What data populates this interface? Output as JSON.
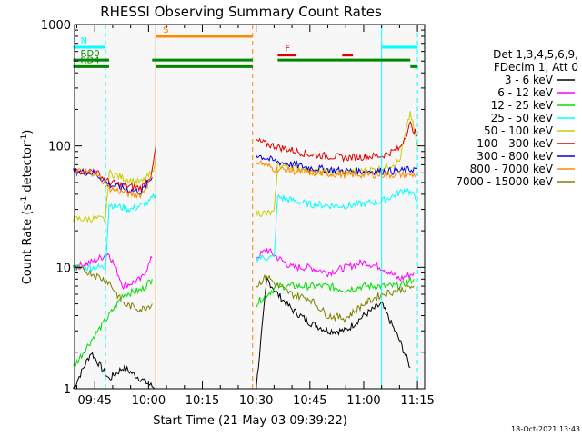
{
  "chart_data": {
    "type": "line",
    "title": "RHESSI Observing Summary Count Rates",
    "xlabel": "Start Time (21-May-03 09:39:22)",
    "ylabel_prefix": "Count Rate (s",
    "ylabel_sup1": "-1",
    "ylabel_mid": " detector",
    "ylabel_sup2": "-1",
    "ylabel_suffix": ")",
    "y_scale": "log",
    "xlim": [
      "09:39:22",
      "11:17:00"
    ],
    "ylim": [
      1,
      1000
    ],
    "x_ticks": [
      "09:45",
      "10:00",
      "10:15",
      "10:30",
      "10:45",
      "11:00",
      "11:15"
    ],
    "y_ticks": [
      "1",
      "10",
      "100",
      "1000"
    ],
    "footer_timestamp": "18-Oct-2021 13:43",
    "legend_header": [
      "Det 1,3,4,5,6,9,",
      "FDecim 1, Att 0"
    ],
    "series": [
      {
        "name": "3 - 6 keV",
        "color": "#000000",
        "x": [
          "09:39",
          "09:44",
          "09:49",
          "09:53",
          "10:02",
          "10:30",
          "10:33",
          "10:36",
          "10:40",
          "10:45",
          "10:50",
          "10:55",
          "11:00",
          "11:05",
          "11:10",
          "11:13"
        ],
        "values": [
          1.0,
          2.0,
          1.2,
          1.5,
          1.0,
          1.0,
          8.0,
          6.0,
          4.5,
          3.5,
          3.0,
          3.0,
          4.0,
          5.0,
          2.5,
          1.5
        ]
      },
      {
        "name": "6 - 12 keV",
        "color": "#ff00ff",
        "x": [
          "09:39",
          "09:44",
          "09:49",
          "09:53",
          "09:58",
          "10:01",
          "10:30",
          "10:33",
          "10:36",
          "10:40",
          "10:45",
          "10:50",
          "10:55",
          "11:00",
          "11:05",
          "11:10",
          "11:14"
        ],
        "values": [
          10,
          11,
          13,
          7,
          8,
          12,
          12,
          14,
          12,
          10,
          10,
          9,
          10,
          11,
          10,
          8,
          9
        ]
      },
      {
        "name": "12 - 25 keV",
        "color": "#00dd00",
        "x": [
          "09:39",
          "09:44",
          "09:49",
          "09:53",
          "09:58",
          "10:01",
          "10:30",
          "10:33",
          "10:36",
          "10:40",
          "10:45",
          "10:50",
          "10:55",
          "11:00",
          "11:05",
          "11:10",
          "11:14"
        ],
        "values": [
          1.5,
          2.5,
          4.0,
          6.0,
          6.5,
          8.0,
          5.0,
          6.0,
          7.0,
          7.0,
          7.0,
          7.0,
          6.5,
          7.0,
          7.0,
          7.0,
          8.0
        ]
      },
      {
        "name": "25 - 50 keV",
        "color": "#00ffff",
        "x": [
          "09:39",
          "09:48",
          "09:49",
          "09:55",
          "10:00",
          "10:02",
          "10:30",
          "10:35",
          "10:36",
          "10:45",
          "10:55",
          "11:05",
          "11:12",
          "11:15"
        ],
        "values": [
          10,
          10,
          33,
          30,
          34,
          40,
          12,
          12,
          38,
          33,
          32,
          35,
          44,
          36
        ]
      },
      {
        "name": "50 - 100 keV",
        "color": "#cccc00",
        "x": [
          "09:39",
          "09:48",
          "09:49",
          "09:55",
          "09:58",
          "10:01",
          "10:02",
          "10:30",
          "10:35",
          "10:36",
          "10:45",
          "10:55",
          "11:05",
          "11:10",
          "11:13",
          "11:15"
        ],
        "values": [
          25,
          25,
          60,
          52,
          50,
          60,
          80,
          28,
          28,
          70,
          62,
          60,
          65,
          75,
          190,
          100
        ]
      },
      {
        "name": "100 - 300 keV",
        "color": "#dd0000",
        "x": [
          "09:39",
          "09:45",
          "09:49",
          "09:55",
          "09:58",
          "10:01",
          "10:02",
          "10:30",
          "10:35",
          "10:45",
          "10:55",
          "11:05",
          "11:10",
          "11:13",
          "11:15"
        ],
        "values": [
          62,
          62,
          50,
          46,
          45,
          60,
          100,
          110,
          100,
          85,
          80,
          83,
          95,
          150,
          120
        ]
      },
      {
        "name": "300 - 800 keV",
        "color": "#0000dd",
        "x": [
          "09:39",
          "09:45",
          "09:49",
          "09:55",
          "09:58",
          "10:01",
          "10:30",
          "10:35",
          "10:45",
          "10:55",
          "11:05",
          "11:10",
          "11:15"
        ],
        "values": [
          62,
          60,
          48,
          43,
          42,
          55,
          85,
          75,
          66,
          62,
          62,
          62,
          65
        ]
      },
      {
        "name": "800 - 7000 keV",
        "color": "#ff8800",
        "x": [
          "09:39",
          "09:45",
          "09:49",
          "09:55",
          "09:58",
          "10:01",
          "10:30",
          "10:35",
          "10:45",
          "10:55",
          "11:05",
          "11:10",
          "11:15"
        ],
        "values": [
          62,
          60,
          45,
          40,
          40,
          55,
          75,
          65,
          60,
          58,
          58,
          58,
          58
        ]
      },
      {
        "name": "7000 - 15000 keV",
        "color": "#808000",
        "x": [
          "09:39",
          "09:44",
          "09:49",
          "09:53",
          "09:58",
          "10:01",
          "10:30",
          "10:33",
          "10:36",
          "10:40",
          "10:45",
          "10:50",
          "10:55",
          "11:00",
          "11:05",
          "11:10",
          "11:14"
        ],
        "values": [
          10,
          9,
          7.5,
          5.0,
          4.5,
          5.0,
          7.0,
          8.5,
          7.0,
          6.0,
          5.5,
          4.0,
          3.8,
          5.0,
          6.0,
          6.5,
          7.0
        ]
      }
    ],
    "flag_bars": [
      {
        "label": "N",
        "color": "#00ffff",
        "y": 650,
        "segments": [
          [
            "09:39",
            "09:48"
          ],
          [
            "11:05",
            "11:15"
          ]
        ]
      },
      {
        "label": "S",
        "color": "#ff8800",
        "y": 800,
        "segments": [
          [
            "10:02",
            "10:29"
          ]
        ]
      },
      {
        "label": "F",
        "color": "#dd0000",
        "y": 560,
        "segments": [
          [
            "10:36",
            "10:41"
          ],
          [
            "10:54",
            "10:57"
          ]
        ]
      },
      {
        "label": "RD0",
        "color": "#008800",
        "y": 510,
        "segments": [
          [
            "09:39",
            "09:49"
          ],
          [
            "10:01",
            "10:29"
          ],
          [
            "10:36",
            "11:13"
          ]
        ]
      },
      {
        "label": "RD4",
        "color": "#008800",
        "y": 450,
        "segments": [
          [
            "09:39",
            "09:49"
          ],
          [
            "10:02",
            "10:29"
          ],
          [
            "11:13",
            "11:15"
          ]
        ]
      }
    ],
    "vertical_markers": [
      {
        "x": "09:48",
        "color": "#00ffff",
        "style": "dashed"
      },
      {
        "x": "10:02",
        "color": "#ff8800",
        "style": "solid"
      },
      {
        "x": "10:29",
        "color": "#ff8800",
        "style": "dashed"
      },
      {
        "x": "11:05",
        "color": "#00ffff",
        "style": "solid"
      },
      {
        "x": "11:15",
        "color": "#00ffff",
        "style": "dashed"
      }
    ]
  }
}
